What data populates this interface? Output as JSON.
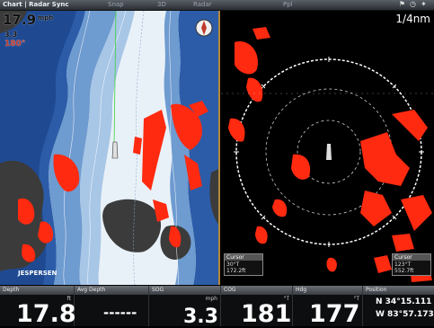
{
  "topbar": {
    "title": "Chart | Radar Sync",
    "menu": [
      "Snap",
      "3D",
      "Radar",
      "Ppl"
    ],
    "icons": [
      "alarm-icon",
      "clock-icon",
      "satellite-icon"
    ]
  },
  "chart_pane": {
    "speed": "17.9",
    "speed_unit": "mph",
    "heading": "180°",
    "speed_small": "3.3",
    "place_label": "JESPERSEN"
  },
  "radar_pane": {
    "range": "1/4nm",
    "box_left": {
      "title": "Cursor",
      "line1": "30°T",
      "line2": "172.2ft"
    },
    "box_right": {
      "title": "Cursor",
      "line1": "123°T",
      "line2": "552.7ft"
    }
  },
  "bottom": {
    "boxes": [
      {
        "label": "Depth",
        "value": "17.8",
        "unit": "ft"
      },
      {
        "label": "Avg Depth",
        "value": "------",
        "unit": ""
      },
      {
        "label": "SOG",
        "value": "3.3",
        "unit": "mph"
      },
      {
        "label": "COG",
        "value": "181",
        "unit": "°T"
      },
      {
        "label": "Hdg",
        "value": "177",
        "unit": "°T"
      },
      {
        "label": "Position",
        "lat": "N 34°15.111",
        "lon": "W 83°57.173"
      }
    ]
  },
  "colors": {
    "water_deep": "#2a5aa8",
    "water_shallow": "#d8e6f4",
    "land": "#3a3a3a",
    "radar_return": "#ff2a10",
    "range_ring": "#ffffff",
    "pane_border": "#b38a3a"
  }
}
